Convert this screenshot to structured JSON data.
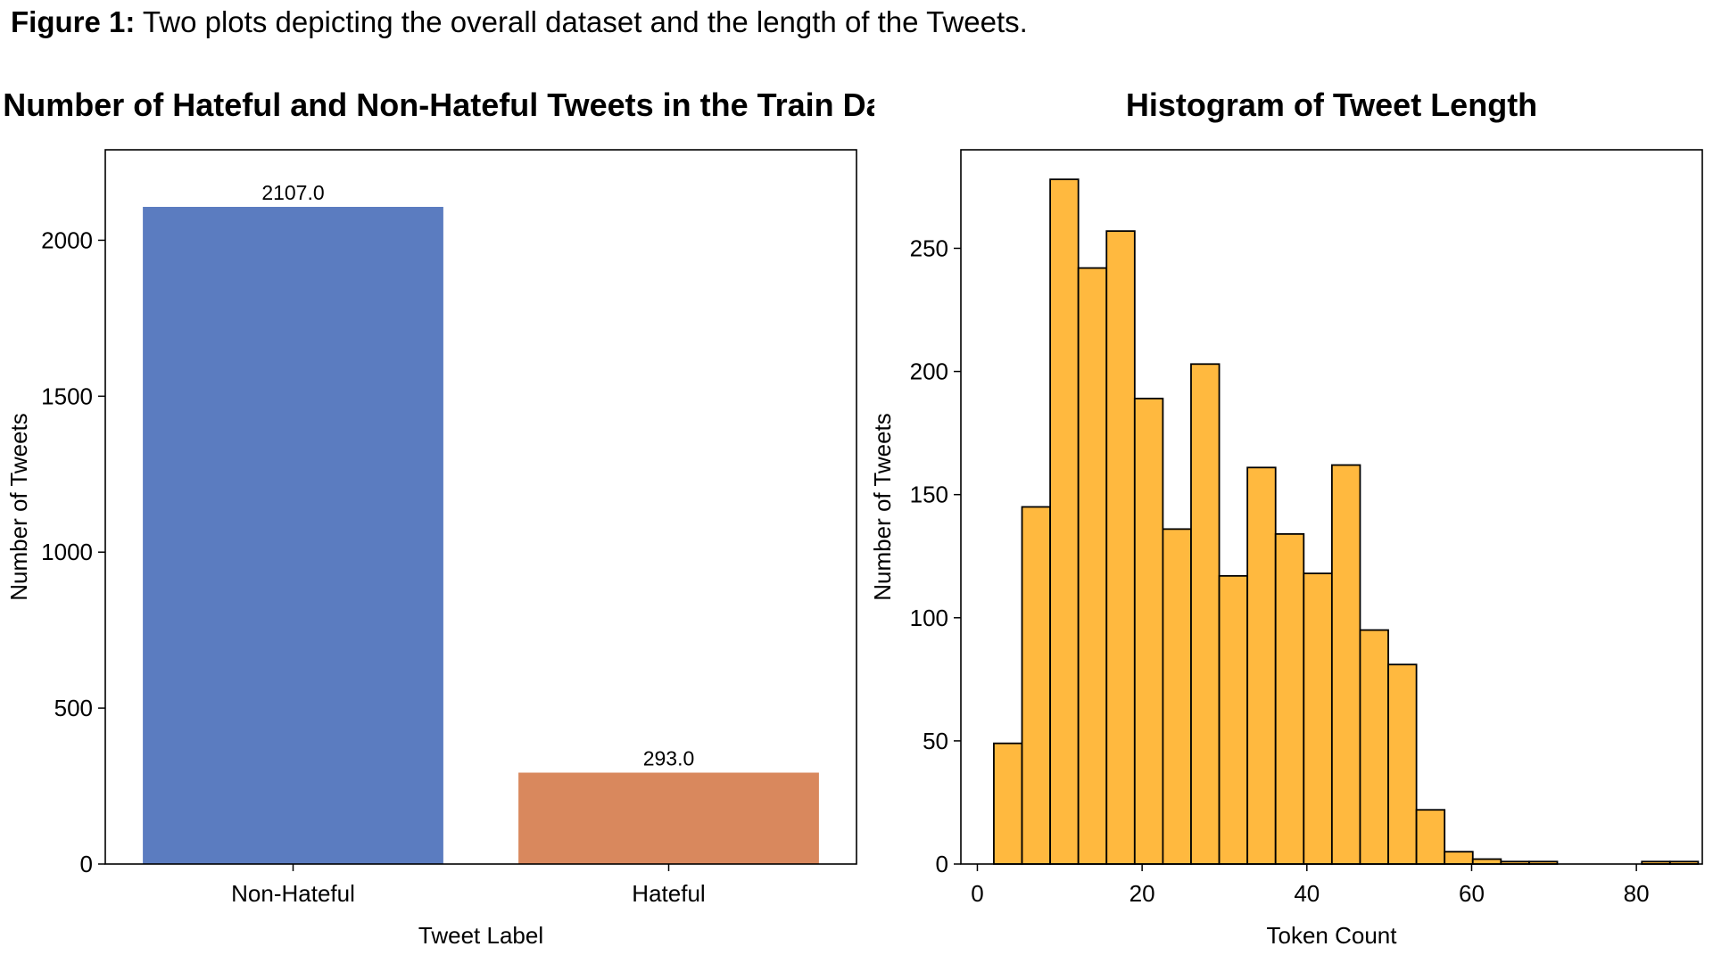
{
  "caption": {
    "label": "Figure 1:",
    "text": " Two plots depicting the overall dataset and the length of the Tweets."
  },
  "chart_data": [
    {
      "type": "bar",
      "title": "Number of Hateful and Non-Hateful Tweets in the Train Dataset",
      "xlabel": "Tweet Label",
      "ylabel": "Number of Tweets",
      "categories": [
        "Non-Hateful",
        "Hateful"
      ],
      "values": [
        2107,
        293
      ],
      "data_labels": [
        "2107.0",
        "293.0"
      ],
      "colors": [
        "#5b7cc0",
        "#d9885d"
      ],
      "ylim": [
        0,
        2290
      ],
      "yticks": [
        0,
        500,
        1000,
        1500,
        2000
      ],
      "grid": false
    },
    {
      "type": "bar",
      "subtype": "histogram",
      "title": "Histogram of Tweet Length",
      "xlabel": "Token Count",
      "ylabel": "Number of Tweets",
      "color": "#ffb93f",
      "edge_color": "#000000",
      "bin_start": 2,
      "bin_width": 3.42,
      "counts": [
        49,
        145,
        278,
        242,
        257,
        189,
        136,
        203,
        117,
        161,
        134,
        118,
        162,
        95,
        81,
        22,
        5,
        2,
        1,
        1,
        0,
        0,
        0,
        1,
        1
      ],
      "xlim": [
        -2,
        88
      ],
      "ylim": [
        0,
        290
      ],
      "xticks": [
        0,
        20,
        40,
        60,
        80
      ],
      "yticks": [
        0,
        50,
        100,
        150,
        200,
        250
      ],
      "grid": false
    }
  ]
}
